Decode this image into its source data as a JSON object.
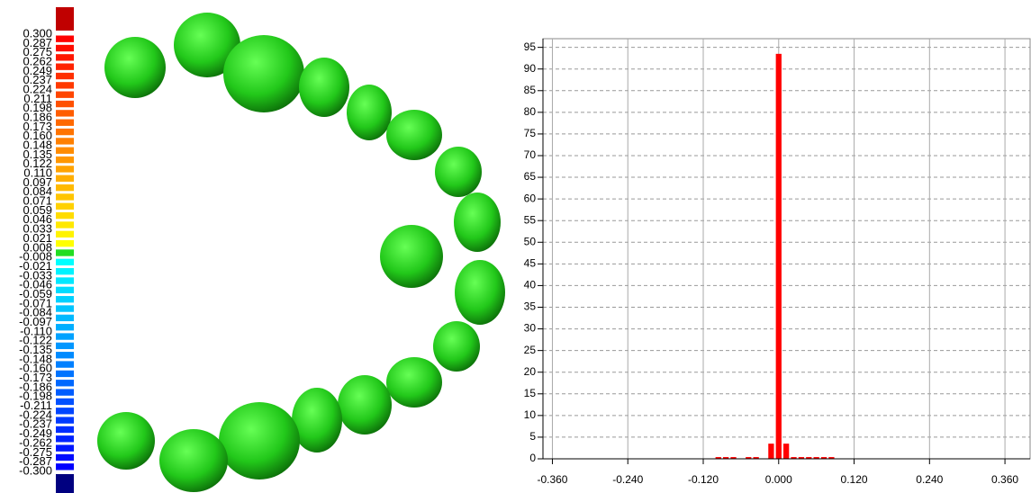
{
  "color_scale": {
    "labels": [
      "0.300",
      "0.287",
      "0.275",
      "0.262",
      "0.249",
      "0.237",
      "0.224",
      "0.211",
      "0.198",
      "0.186",
      "0.173",
      "0.160",
      "0.148",
      "0.135",
      "0.122",
      "0.110",
      "0.097",
      "0.084",
      "0.071",
      "0.059",
      "0.046",
      "0.033",
      "0.021",
      "0.008",
      "-0.008",
      "-0.021",
      "-0.033",
      "-0.046",
      "-0.059",
      "-0.071",
      "-0.084",
      "-0.097",
      "-0.110",
      "-0.122",
      "-0.135",
      "-0.148",
      "-0.160",
      "-0.173",
      "-0.186",
      "-0.198",
      "-0.211",
      "-0.224",
      "-0.237",
      "-0.249",
      "-0.262",
      "-0.275",
      "-0.287",
      "-0.300"
    ],
    "colors": {
      "above": "#c00000",
      "below": "#000080",
      "zero": "#22dd22",
      "positive": [
        "#ff0000",
        "#ff8000",
        "#ffff00"
      ],
      "negative": [
        "#00ffff",
        "#0000ff"
      ]
    }
  },
  "chart_data": {
    "type": "histogram",
    "color": "#ff0000",
    "bins": [
      -0.102,
      -0.09,
      -0.078,
      -0.066,
      -0.054,
      -0.042,
      -0.03,
      -0.018,
      -0.006,
      0.006,
      0.018,
      0.03,
      0.042,
      0.054,
      0.066,
      0.078,
      0.09,
      0.102
    ],
    "values": [
      0.4,
      0.4,
      0.4,
      0,
      0.4,
      0.4,
      0,
      3.5,
      93.5,
      3.5,
      0.4,
      0.4,
      0.4,
      0.4,
      0.4,
      0.4,
      0
    ],
    "xlim": [
      -0.375,
      0.4
    ],
    "ylim": [
      0,
      97
    ],
    "xticks": [
      {
        "value": -0.36,
        "label": "-0.360"
      },
      {
        "value": -0.24,
        "label": "-0.240"
      },
      {
        "value": -0.12,
        "label": "-0.120"
      },
      {
        "value": 0,
        "label": "0.000"
      },
      {
        "value": 0.12,
        "label": "0.120"
      },
      {
        "value": 0.24,
        "label": "0.240"
      },
      {
        "value": 0.36,
        "label": "0.360"
      }
    ],
    "yticks": [
      0,
      5,
      10,
      15,
      20,
      25,
      30,
      35,
      40,
      45,
      50,
      55,
      60,
      65,
      70,
      75,
      80,
      85,
      90,
      95
    ],
    "grid": true
  }
}
